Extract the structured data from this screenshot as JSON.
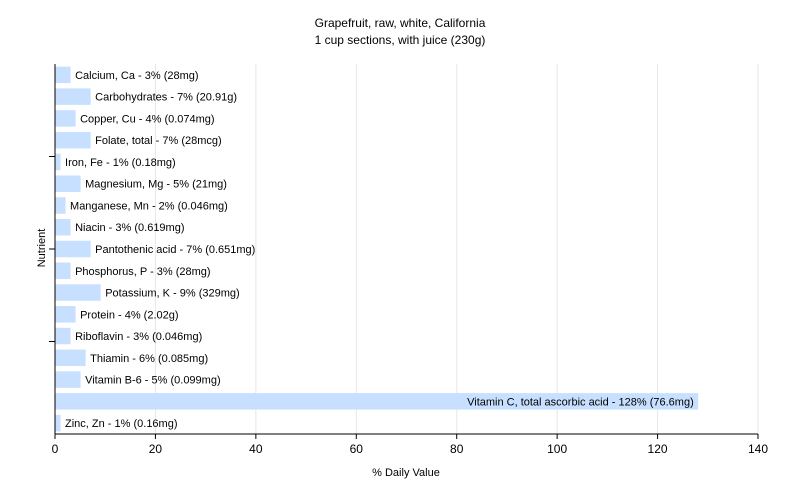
{
  "chart_data": {
    "type": "bar",
    "orientation": "horizontal",
    "title": "Grapefruit, raw, white, California",
    "subtitle": "1 cup sections, with juice (230g)",
    "xlabel": "% Daily Value",
    "ylabel": "Nutrient",
    "xlim": [
      0,
      140
    ],
    "xticks": [
      0,
      20,
      40,
      60,
      80,
      100,
      120,
      140
    ],
    "grid": true,
    "bar_color": "#c8e0ff",
    "grid_color": "#e6e6e6",
    "axis_color": "#000000",
    "categories": [
      "Calcium, Ca",
      "Carbohydrates",
      "Copper, Cu",
      "Folate, total",
      "Iron, Fe",
      "Magnesium, Mg",
      "Manganese, Mn",
      "Niacin",
      "Pantothenic acid",
      "Phosphorus, P",
      "Potassium, K",
      "Protein",
      "Riboflavin",
      "Thiamin",
      "Vitamin B-6",
      "Vitamin C, total ascorbic acid",
      "Zinc, Zn"
    ],
    "values": [
      3,
      7,
      4,
      7,
      1,
      5,
      2,
      3,
      7,
      3,
      9,
      4,
      3,
      6,
      5,
      128,
      1
    ],
    "labels": [
      "Calcium, Ca - 3% (28mg)",
      "Carbohydrates - 7% (20.91g)",
      "Copper, Cu - 4% (0.074mg)",
      "Folate, total - 7% (28mcg)",
      "Iron, Fe - 1% (0.18mg)",
      "Magnesium, Mg - 5% (21mg)",
      "Manganese, Mn - 2% (0.046mg)",
      "Niacin - 3% (0.619mg)",
      "Pantothenic acid - 7% (0.651mg)",
      "Phosphorus, P - 3% (28mg)",
      "Potassium, K - 9% (329mg)",
      "Protein - 4% (2.02g)",
      "Riboflavin - 3% (0.046mg)",
      "Thiamin - 6% (0.085mg)",
      "Vitamin B-6 - 5% (0.099mg)",
      "Vitamin C, total ascorbic acid - 128% (76.6mg)",
      "Zinc, Zn - 1% (0.16mg)"
    ]
  }
}
